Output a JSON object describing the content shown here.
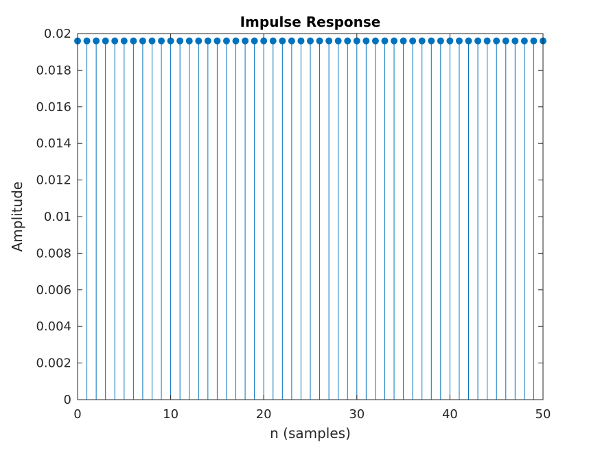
{
  "chart_data": {
    "type": "stem",
    "title": "Impulse Response",
    "xlabel": "n (samples)",
    "ylabel": "Amplitude",
    "xlim": [
      0,
      50
    ],
    "ylim": [
      0,
      0.02
    ],
    "xticks": [
      0,
      10,
      20,
      30,
      40,
      50
    ],
    "xtick_labels": [
      "0",
      "10",
      "20",
      "30",
      "40",
      "50"
    ],
    "yticks": [
      0,
      0.002,
      0.004,
      0.006,
      0.008,
      0.01,
      0.012,
      0.014,
      0.016,
      0.018,
      0.02
    ],
    "ytick_labels": [
      "0",
      "0.002",
      "0.004",
      "0.006",
      "0.008",
      "0.01",
      "0.012",
      "0.014",
      "0.016",
      "0.018",
      "0.02"
    ],
    "grid": false,
    "series": [
      {
        "color": "#0072BD",
        "x": [
          0,
          1,
          2,
          3,
          4,
          5,
          6,
          7,
          8,
          9,
          10,
          11,
          12,
          13,
          14,
          15,
          16,
          17,
          18,
          19,
          20,
          21,
          22,
          23,
          24,
          25,
          26,
          27,
          28,
          29,
          30,
          31,
          32,
          33,
          34,
          35,
          36,
          37,
          38,
          39,
          40,
          41,
          42,
          43,
          44,
          45,
          46,
          47,
          48,
          49,
          50
        ],
        "y": [
          0.0196,
          0.0196,
          0.0196,
          0.0196,
          0.0196,
          0.0196,
          0.0196,
          0.0196,
          0.0196,
          0.0196,
          0.0196,
          0.0196,
          0.0196,
          0.0196,
          0.0196,
          0.0196,
          0.0196,
          0.0196,
          0.0196,
          0.0196,
          0.0196,
          0.0196,
          0.0196,
          0.0196,
          0.0196,
          0.0196,
          0.0196,
          0.0196,
          0.0196,
          0.0196,
          0.0196,
          0.0196,
          0.0196,
          0.0196,
          0.0196,
          0.0196,
          0.0196,
          0.0196,
          0.0196,
          0.0196,
          0.0196,
          0.0196,
          0.0196,
          0.0196,
          0.0196,
          0.0196,
          0.0196,
          0.0196,
          0.0196,
          0.0196,
          0.0196
        ]
      }
    ]
  }
}
